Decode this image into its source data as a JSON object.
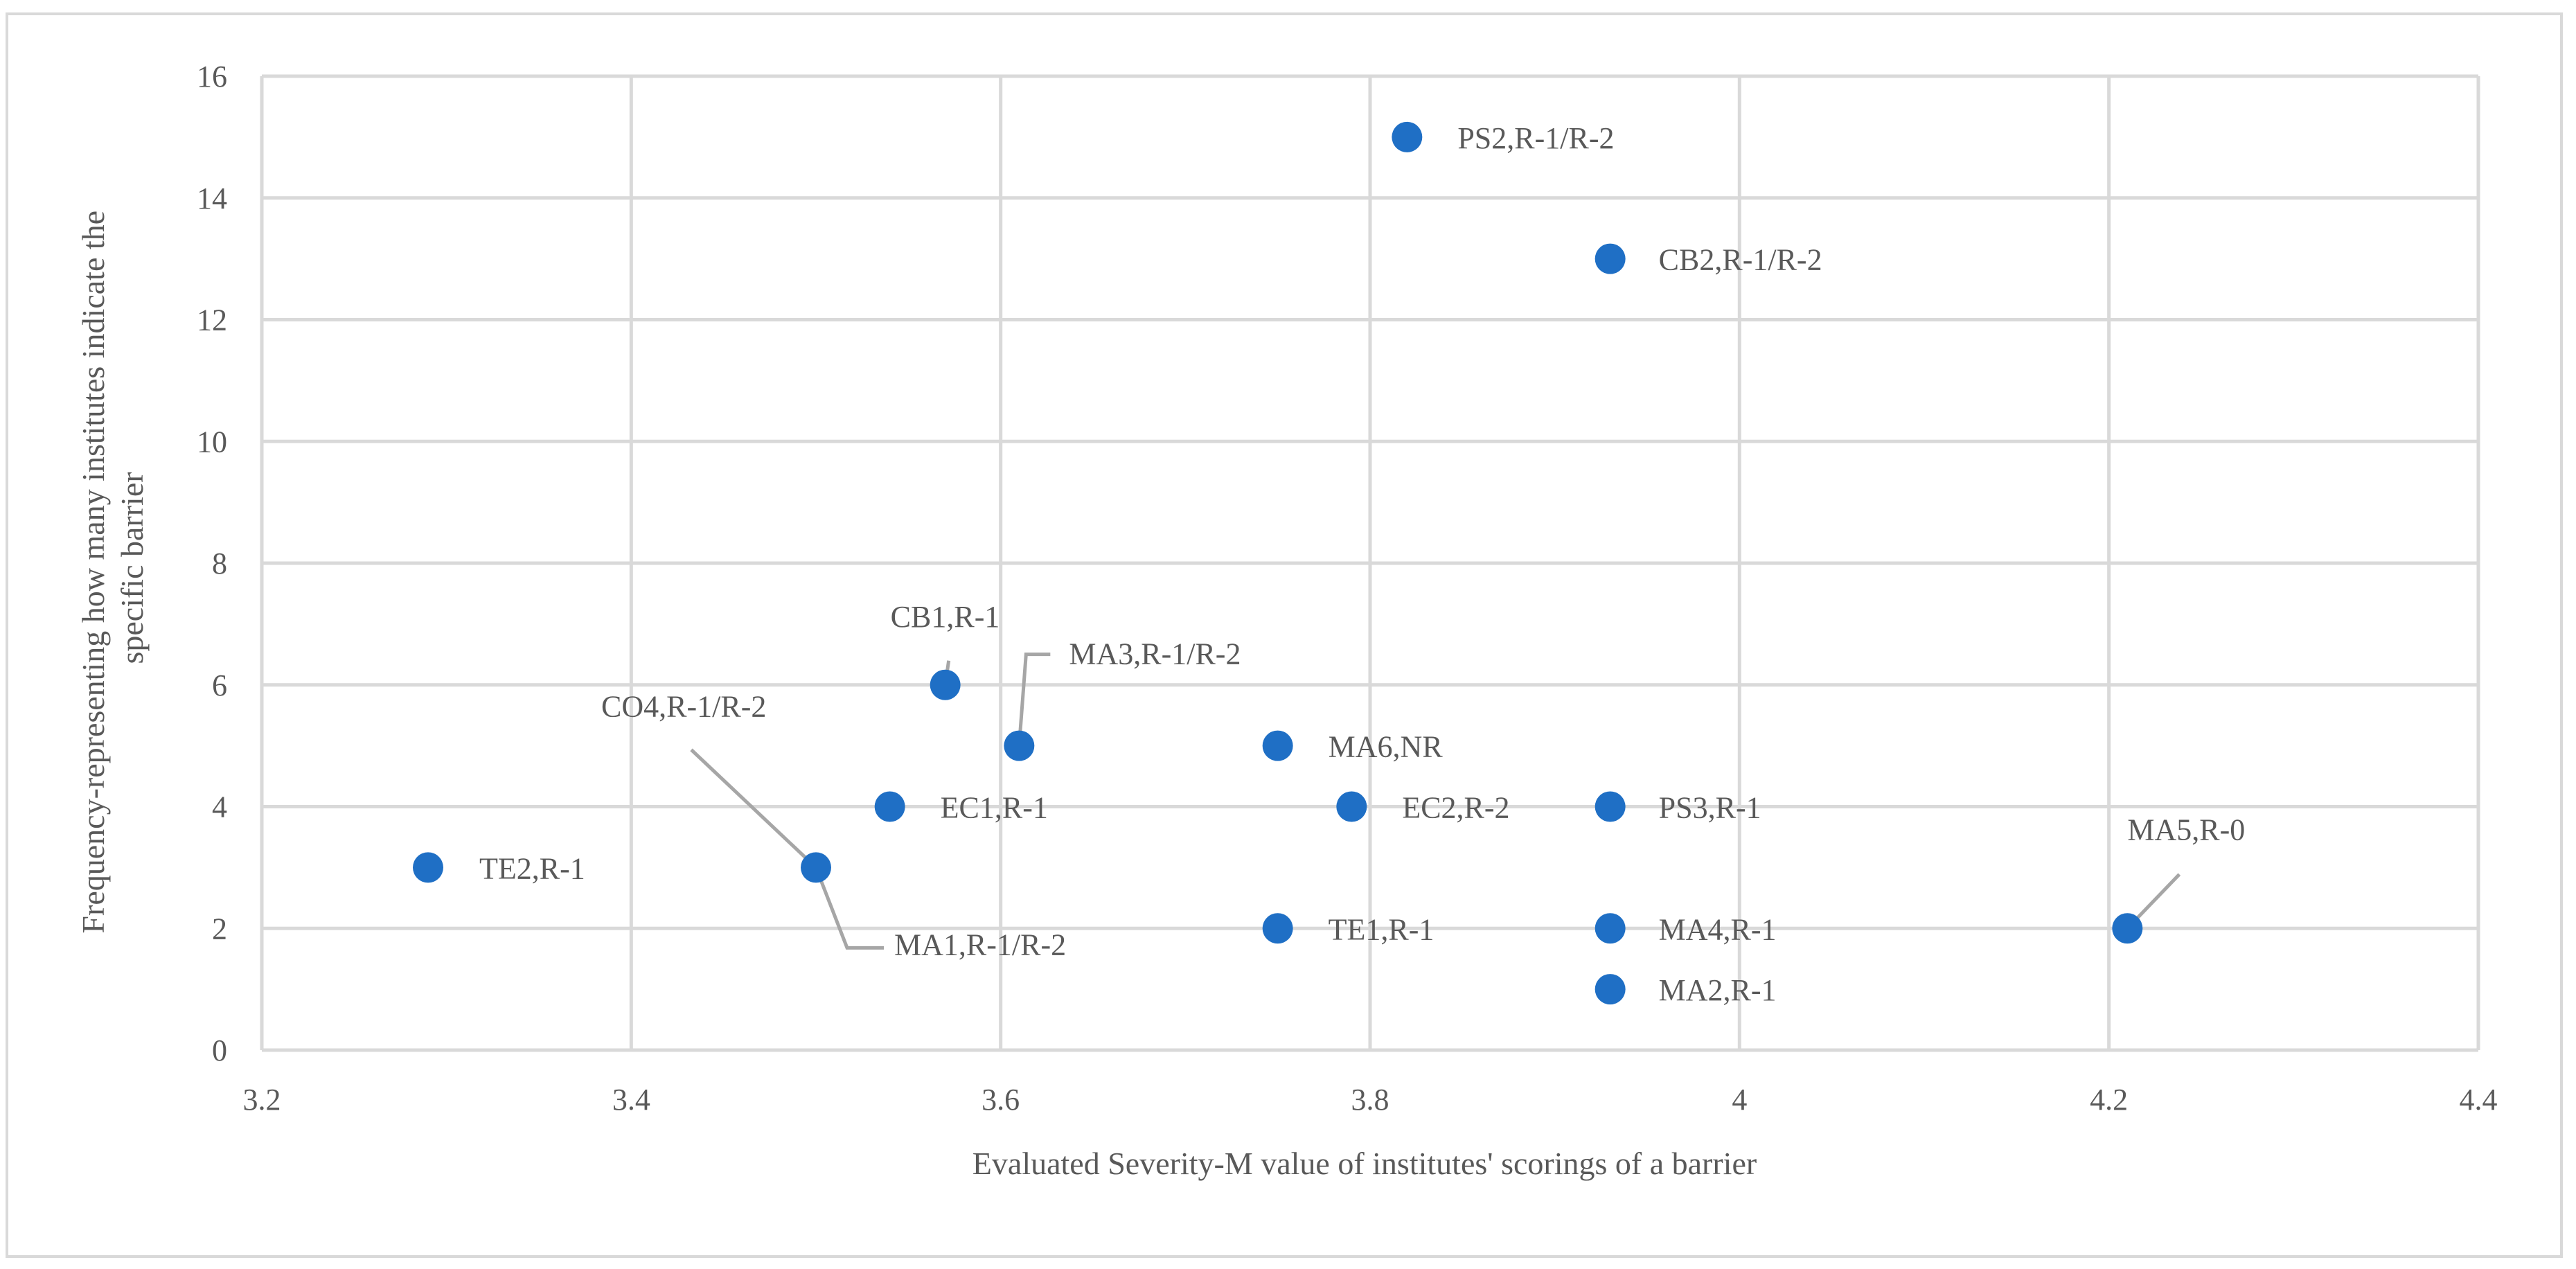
{
  "chart_data": {
    "type": "scatter",
    "title": "",
    "xlabel": "Evaluated Severity-M value of institutes' scorings of a barrier",
    "ylabel": "Frequency-representing how many institutes indicate the specific barrier",
    "ylabel_lines": [
      "Frequency-representing how many institutes indicate the",
      "specific barrier"
    ],
    "xlim": [
      3.2,
      4.4
    ],
    "ylim": [
      0,
      16
    ],
    "x_ticks": [
      3.2,
      3.4,
      3.6,
      3.8,
      4.0,
      4.2,
      4.4
    ],
    "x_tick_labels": [
      "3.2",
      "3.4",
      "3.6",
      "3.8",
      "4",
      "4.2",
      "4.4"
    ],
    "y_ticks": [
      0,
      2,
      4,
      6,
      8,
      10,
      12,
      14,
      16
    ],
    "y_tick_labels": [
      "0",
      "2",
      "4",
      "6",
      "8",
      "10",
      "12",
      "14",
      "16"
    ],
    "grid": true,
    "marker_color": "#1f6fc5",
    "grid_color": "#d9d9d9",
    "leader_color": "#a6a6a6",
    "points": [
      {
        "x": 3.29,
        "y": 3,
        "label": "TE2,R-1"
      },
      {
        "x": 3.5,
        "y": 3,
        "label": "CO4,R-1/R-2"
      },
      {
        "x": 3.5,
        "y": 3,
        "label": "MA1,R-1/R-2"
      },
      {
        "x": 3.54,
        "y": 4,
        "label": "EC1,R-1"
      },
      {
        "x": 3.57,
        "y": 6,
        "label": "CB1,R-1"
      },
      {
        "x": 3.61,
        "y": 5,
        "label": "MA3,R-1/R-2"
      },
      {
        "x": 3.75,
        "y": 5,
        "label": "MA6,NR"
      },
      {
        "x": 3.75,
        "y": 2,
        "label": "TE1,R-1"
      },
      {
        "x": 3.79,
        "y": 4,
        "label": "EC2,R-2"
      },
      {
        "x": 3.82,
        "y": 15,
        "label": "PS2,R-1/R-2"
      },
      {
        "x": 3.93,
        "y": 13,
        "label": "CB2,R-1/R-2"
      },
      {
        "x": 3.93,
        "y": 4,
        "label": "PS3,R-1"
      },
      {
        "x": 3.93,
        "y": 2,
        "label": "MA4,R-1"
      },
      {
        "x": 3.93,
        "y": 1,
        "label": "MA2,R-1"
      },
      {
        "x": 4.21,
        "y": 2,
        "label": "MA5,R-0"
      }
    ]
  }
}
